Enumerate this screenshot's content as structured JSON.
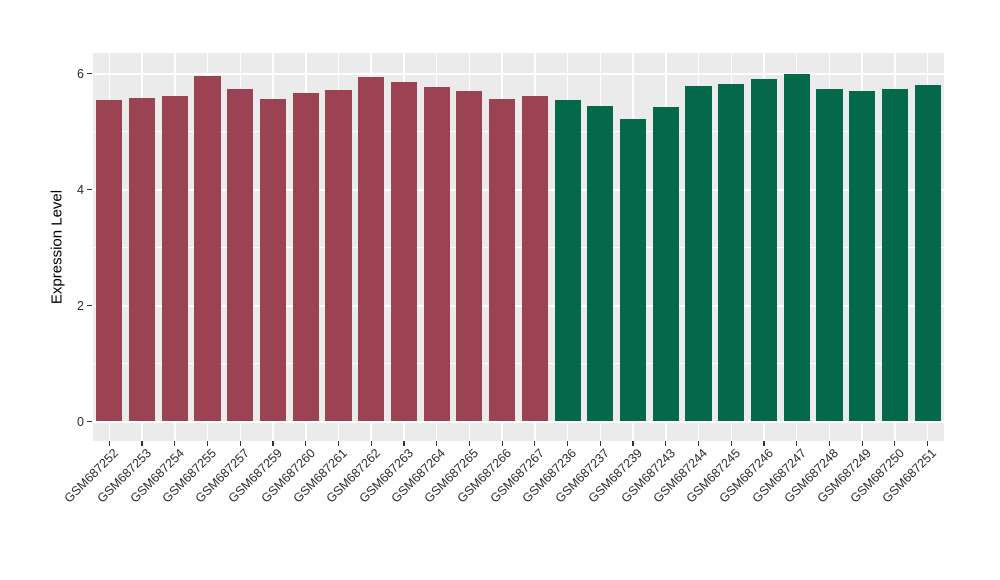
{
  "chart_data": {
    "type": "bar",
    "title": "",
    "xlabel": "",
    "ylabel": "Expression Level",
    "ylim": [
      0,
      6.35
    ],
    "yticks": [
      0,
      2,
      4,
      6
    ],
    "minor_yticks": [
      1,
      3,
      5
    ],
    "grid": true,
    "legend": "none",
    "bars": [
      {
        "label": "GSM687252",
        "value": 5.54,
        "group": "group1"
      },
      {
        "label": "GSM687253",
        "value": 5.58,
        "group": "group1"
      },
      {
        "label": "GSM687254",
        "value": 5.62,
        "group": "group1"
      },
      {
        "label": "GSM687255",
        "value": 5.96,
        "group": "group1"
      },
      {
        "label": "GSM687257",
        "value": 5.73,
        "group": "group1"
      },
      {
        "label": "GSM687259",
        "value": 5.56,
        "group": "group1"
      },
      {
        "label": "GSM687260",
        "value": 5.66,
        "group": "group1"
      },
      {
        "label": "GSM687261",
        "value": 5.72,
        "group": "group1"
      },
      {
        "label": "GSM687262",
        "value": 5.94,
        "group": "group1"
      },
      {
        "label": "GSM687263",
        "value": 5.85,
        "group": "group1"
      },
      {
        "label": "GSM687264",
        "value": 5.77,
        "group": "group1"
      },
      {
        "label": "GSM687265",
        "value": 5.7,
        "group": "group1"
      },
      {
        "label": "GSM687266",
        "value": 5.56,
        "group": "group1"
      },
      {
        "label": "GSM687267",
        "value": 5.61,
        "group": "group1"
      },
      {
        "label": "GSM687236",
        "value": 5.55,
        "group": "group2"
      },
      {
        "label": "GSM687237",
        "value": 5.44,
        "group": "group2"
      },
      {
        "label": "GSM687239",
        "value": 5.21,
        "group": "group2"
      },
      {
        "label": "GSM687243",
        "value": 5.42,
        "group": "group2"
      },
      {
        "label": "GSM687244",
        "value": 5.79,
        "group": "group2"
      },
      {
        "label": "GSM687245",
        "value": 5.82,
        "group": "group2"
      },
      {
        "label": "GSM687246",
        "value": 5.91,
        "group": "group2"
      },
      {
        "label": "GSM687247",
        "value": 5.99,
        "group": "group2"
      },
      {
        "label": "GSM687248",
        "value": 5.73,
        "group": "group2"
      },
      {
        "label": "GSM687249",
        "value": 5.7,
        "group": "group2"
      },
      {
        "label": "GSM687250",
        "value": 5.74,
        "group": "group2"
      },
      {
        "label": "GSM687251",
        "value": 5.81,
        "group": "group2"
      }
    ],
    "groups": {
      "group1": {
        "color": "#9B4352"
      },
      "group2": {
        "color": "#04684A"
      }
    },
    "colors": {
      "panel_background": "#EBEBEB",
      "grid": "#FFFFFF",
      "tick_marks": "#333333",
      "tick_text": "#2B2B2B",
      "axis_title_text": "#000000",
      "figure_background": "#FFFFFF"
    }
  }
}
